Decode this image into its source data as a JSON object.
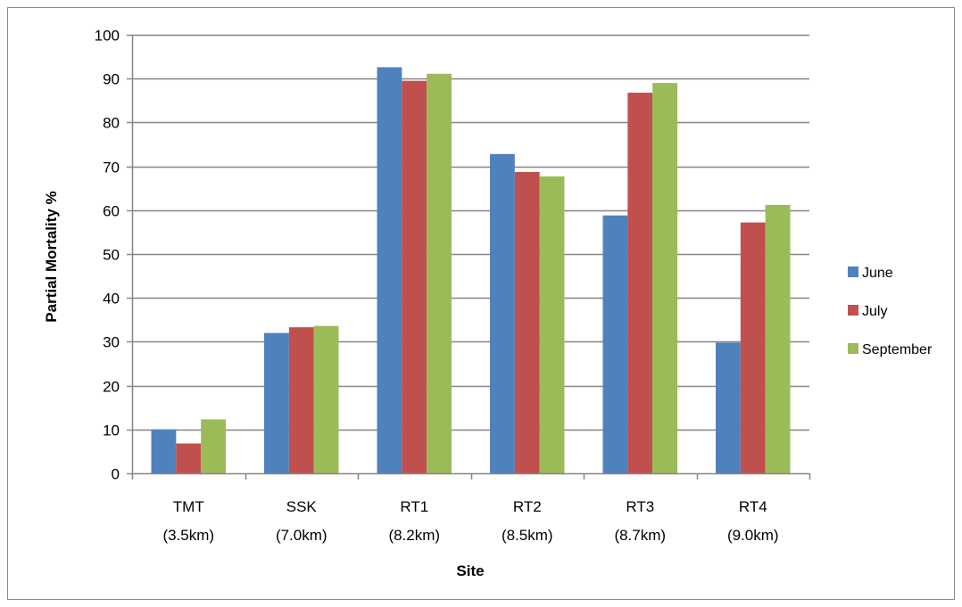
{
  "chart_data": {
    "type": "bar",
    "title": "",
    "xlabel": "Site",
    "ylabel": "Partial Mortality %",
    "ylim": [
      0,
      100
    ],
    "yticks": [
      0,
      10,
      20,
      30,
      40,
      50,
      60,
      70,
      80,
      90,
      100
    ],
    "grid": true,
    "legend_position": "right",
    "categories": [
      [
        "TMT",
        "(3.5km)"
      ],
      [
        "SSK",
        "(7.0km)"
      ],
      [
        "RT1",
        "(8.2km)"
      ],
      [
        "RT2",
        "(8.5km)"
      ],
      [
        "RT3",
        "(8.7km)"
      ],
      [
        "RT4",
        "(9.0km)"
      ]
    ],
    "series": [
      {
        "name": "June",
        "color": "#4f81bd",
        "values": [
          10,
          32,
          92.6,
          72.8,
          58.8,
          29.8
        ]
      },
      {
        "name": "July",
        "color": "#c0504d",
        "values": [
          6.8,
          33.3,
          89.5,
          68.7,
          86.8,
          57.2
        ]
      },
      {
        "name": "September",
        "color": "#9bbb59",
        "values": [
          12.3,
          33.6,
          91.1,
          67.7,
          89,
          61.2
        ]
      }
    ]
  }
}
